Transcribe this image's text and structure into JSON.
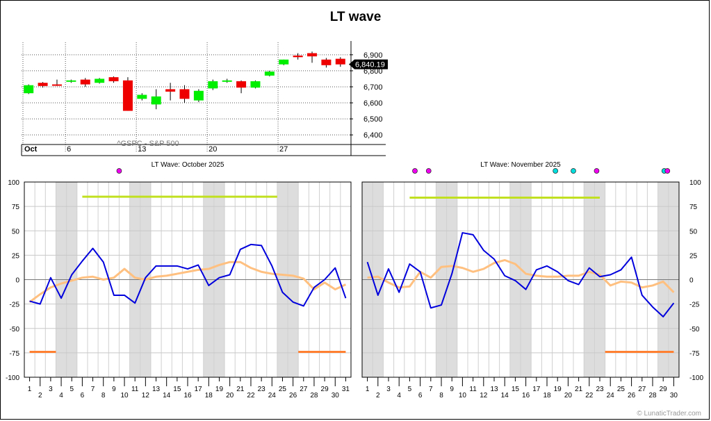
{
  "title": "LT wave",
  "copyright": "© LunaticTrader.com",
  "colors": {
    "up": "#00ee00",
    "down": "#ee0000",
    "wave": "#0000dd",
    "smooth": "#ffc080",
    "band_green": "#c0e020",
    "band_orange": "#ff8030",
    "weekend": "#dddddd",
    "dot_magenta": "#ee00ee",
    "dot_cyan": "#00dddd",
    "price_tag_bg": "#000000",
    "price_tag_fg": "#ffffff"
  },
  "chart_data": [
    {
      "type": "candlestick",
      "symbol_label": "^GSPC - S&P 500",
      "yticks": [
        6400,
        6500,
        6600,
        6700,
        6800,
        6900
      ],
      "ylim": [
        6340,
        6960
      ],
      "last_price_label": "6,840.19",
      "x_labels": [
        {
          "i": 0,
          "label": "Oct",
          "bold": true
        },
        {
          "i": 3,
          "label": "6"
        },
        {
          "i": 8,
          "label": "13"
        },
        {
          "i": 13,
          "label": "20"
        },
        {
          "i": 18,
          "label": "27"
        }
      ],
      "candles": [
        {
          "o": 6660,
          "h": 6715,
          "l": 6655,
          "c": 6710
        },
        {
          "o": 6725,
          "h": 6730,
          "l": 6695,
          "c": 6705
        },
        {
          "o": 6715,
          "h": 6745,
          "l": 6705,
          "c": 6710
        },
        {
          "o": 6735,
          "h": 6745,
          "l": 6725,
          "c": 6740
        },
        {
          "o": 6745,
          "h": 6755,
          "l": 6700,
          "c": 6715
        },
        {
          "o": 6725,
          "h": 6755,
          "l": 6720,
          "c": 6750
        },
        {
          "o": 6760,
          "h": 6765,
          "l": 6725,
          "c": 6735
        },
        {
          "o": 6740,
          "h": 6760,
          "l": 6550,
          "c": 6550
        },
        {
          "o": 6625,
          "h": 6660,
          "l": 6615,
          "c": 6650
        },
        {
          "o": 6590,
          "h": 6685,
          "l": 6560,
          "c": 6640
        },
        {
          "o": 6685,
          "h": 6725,
          "l": 6615,
          "c": 6670
        },
        {
          "o": 6685,
          "h": 6710,
          "l": 6600,
          "c": 6625
        },
        {
          "o": 6615,
          "h": 6685,
          "l": 6605,
          "c": 6675
        },
        {
          "o": 6690,
          "h": 6745,
          "l": 6680,
          "c": 6735
        },
        {
          "o": 6735,
          "h": 6750,
          "l": 6725,
          "c": 6740
        },
        {
          "o": 6735,
          "h": 6740,
          "l": 6660,
          "c": 6695
        },
        {
          "o": 6695,
          "h": 6740,
          "l": 6690,
          "c": 6735
        },
        {
          "o": 6770,
          "h": 6800,
          "l": 6765,
          "c": 6795
        },
        {
          "o": 6840,
          "h": 6870,
          "l": 6835,
          "c": 6870
        },
        {
          "o": 6895,
          "h": 6910,
          "l": 6870,
          "c": 6885
        },
        {
          "o": 6910,
          "h": 6920,
          "l": 6850,
          "c": 6890
        },
        {
          "o": 6870,
          "h": 6880,
          "l": 6820,
          "c": 6835
        },
        {
          "o": 6875,
          "h": 6885,
          "l": 6825,
          "c": 6840
        }
      ]
    },
    {
      "type": "line",
      "title": "LT Wave: October 2025",
      "ylim": [
        -100,
        100
      ],
      "yticks": [
        -100,
        -75,
        -50,
        -25,
        0,
        25,
        50,
        75,
        100
      ],
      "days": 31,
      "weekends": [
        [
          4,
          5
        ],
        [
          11,
          12
        ],
        [
          18,
          19
        ],
        [
          25,
          26
        ]
      ],
      "green_band": {
        "from": 6,
        "to": 24.5,
        "y": 85
      },
      "orange_bands": [
        {
          "from": 1,
          "to": 3.5,
          "y": -74
        },
        {
          "from": 26.5,
          "to": 31,
          "y": -74
        }
      ],
      "dots": [
        {
          "day": 9.5,
          "color": "magenta"
        }
      ],
      "series": [
        {
          "role": "wave",
          "x": [
            1,
            2,
            3,
            4,
            5,
            6,
            7,
            8,
            9,
            10,
            11,
            12,
            13,
            14,
            15,
            16,
            17,
            18,
            19,
            20,
            21,
            22,
            23,
            24,
            25,
            26,
            27,
            28,
            29,
            30,
            31
          ],
          "values": [
            -22,
            -25,
            2,
            -19,
            5,
            19,
            32,
            18,
            -16,
            -16,
            -24,
            2,
            14,
            14,
            14,
            11,
            15,
            -6,
            2,
            5,
            31,
            36,
            35,
            14,
            -13,
            -23,
            -27,
            -8,
            0,
            12,
            -19
          ]
        },
        {
          "role": "smooth",
          "x": [
            1,
            2,
            3,
            4,
            5,
            6,
            7,
            8,
            9,
            10,
            11,
            12,
            13,
            14,
            15,
            16,
            17,
            18,
            19,
            20,
            21,
            22,
            23,
            24,
            25,
            26,
            27,
            28,
            29,
            30,
            31
          ],
          "values": [
            -23,
            -15,
            -8,
            -4,
            -1,
            2,
            3,
            0,
            2,
            11,
            2,
            0,
            3,
            4,
            6,
            8,
            10,
            11,
            15,
            18,
            18,
            12,
            8,
            6,
            5,
            4,
            1,
            -10,
            -3,
            -10,
            -5
          ]
        }
      ]
    },
    {
      "type": "line",
      "title": "LT Wave: November 2025",
      "ylim": [
        -100,
        100
      ],
      "yticks": [
        -100,
        -75,
        -50,
        -25,
        0,
        25,
        50,
        75,
        100
      ],
      "days": 30,
      "weekends": [
        [
          1,
          2
        ],
        [
          8,
          9
        ],
        [
          15,
          16
        ],
        [
          22,
          23
        ],
        [
          29,
          30
        ]
      ],
      "green_band": {
        "from": 5,
        "to": 23,
        "y": 84
      },
      "orange_bands": [
        {
          "from": 23.5,
          "to": 30,
          "y": -74
        }
      ],
      "dots": [
        {
          "day": 5.5,
          "color": "magenta"
        },
        {
          "day": 6.8,
          "color": "magenta"
        },
        {
          "day": 18.8,
          "color": "cyan"
        },
        {
          "day": 20.5,
          "color": "cyan"
        },
        {
          "day": 22.7,
          "color": "magenta"
        },
        {
          "day": 29.1,
          "color": "cyan"
        },
        {
          "day": 29.4,
          "color": "magenta"
        }
      ],
      "series": [
        {
          "role": "wave",
          "x": [
            1,
            2,
            3,
            4,
            5,
            6,
            7,
            8,
            9,
            10,
            11,
            12,
            13,
            14,
            15,
            16,
            17,
            18,
            19,
            20,
            21,
            22,
            23,
            24,
            25,
            26,
            27,
            28,
            29,
            30
          ],
          "values": [
            18,
            -16,
            11,
            -13,
            16,
            8,
            -29,
            -26,
            6,
            48,
            46,
            30,
            21,
            4,
            -1,
            -10,
            10,
            14,
            8,
            -1,
            -5,
            12,
            3,
            5,
            10,
            23,
            -16,
            -28,
            -38,
            -24
          ]
        },
        {
          "role": "smooth",
          "x": [
            1,
            2,
            3,
            4,
            5,
            6,
            7,
            8,
            9,
            10,
            11,
            12,
            13,
            14,
            15,
            16,
            17,
            18,
            19,
            20,
            21,
            22,
            23,
            24,
            25,
            26,
            27,
            28,
            29,
            30
          ],
          "values": [
            2,
            3,
            -3,
            -8,
            -7,
            8,
            2,
            13,
            14,
            12,
            8,
            11,
            17,
            20,
            16,
            6,
            4,
            3,
            3,
            4,
            4,
            8,
            5,
            -6,
            -2,
            -3,
            -8,
            -6,
            -2,
            -13
          ]
        }
      ]
    }
  ]
}
